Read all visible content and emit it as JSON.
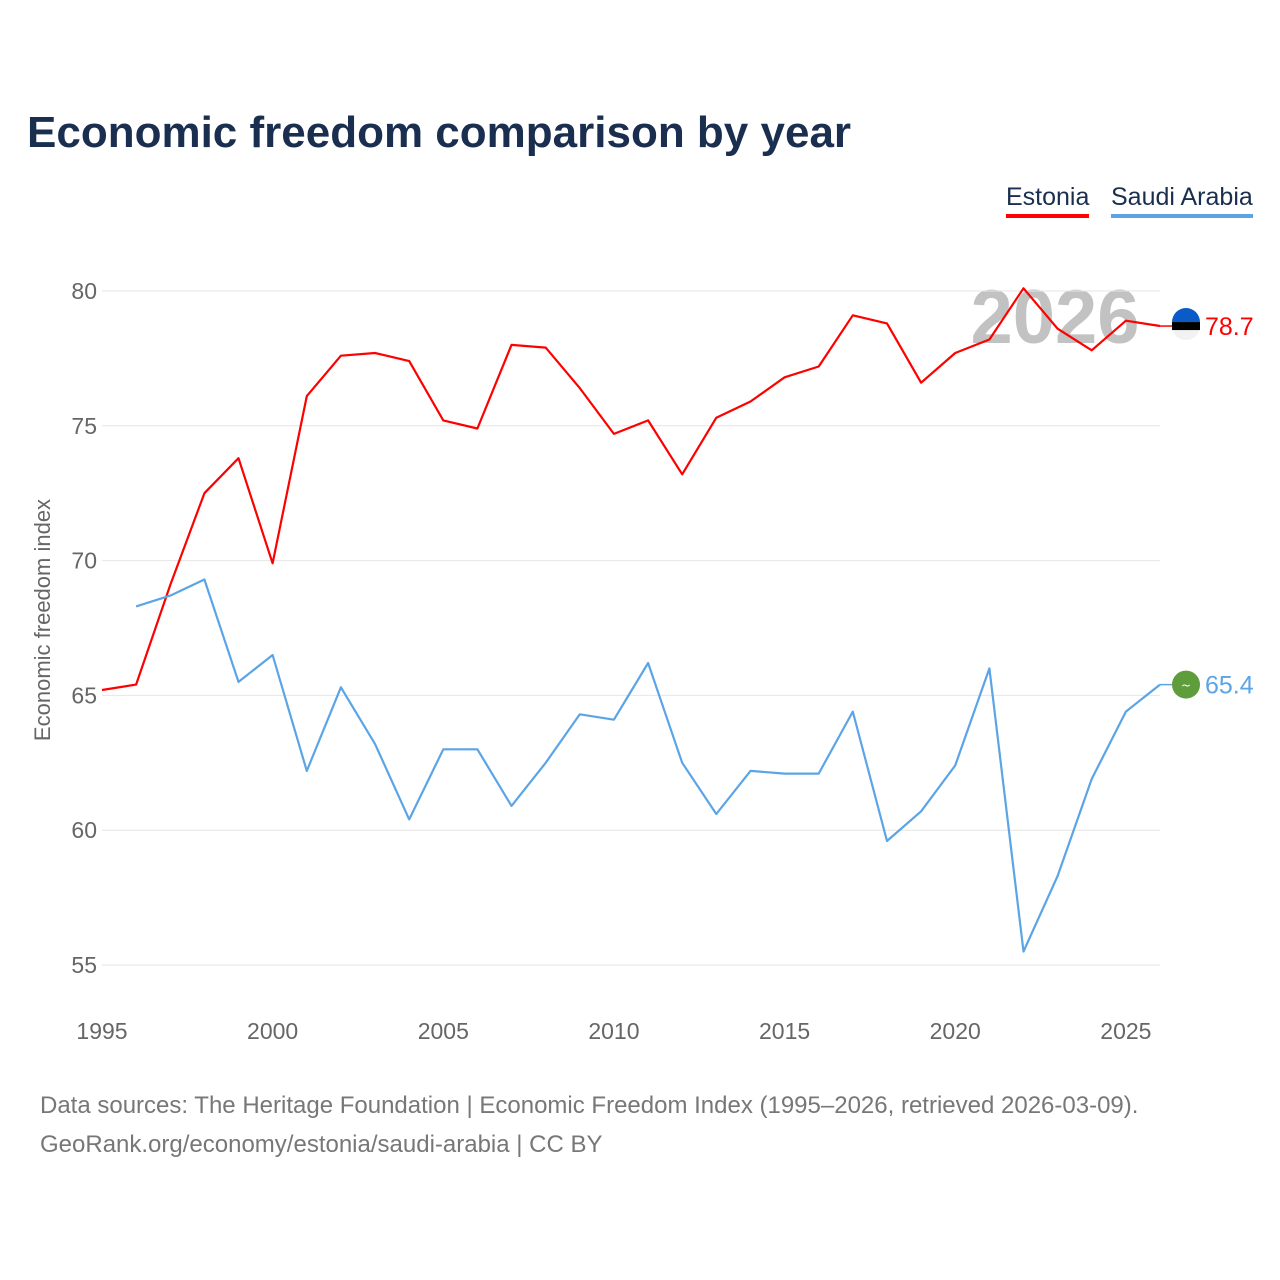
{
  "chart_data": {
    "type": "line",
    "title": "Economic freedom comparison by year",
    "xlabel": "",
    "ylabel": "Economic freedom index",
    "xlim": [
      1995,
      2026
    ],
    "ylim": [
      53.7,
      81.2
    ],
    "xticks": [
      1995,
      2000,
      2005,
      2010,
      2015,
      2020,
      2025
    ],
    "yticks": [
      55,
      60,
      65,
      70,
      75,
      80
    ],
    "grid": true,
    "legend_position": "top-right",
    "watermark_year": "2026",
    "x": [
      1995,
      1996,
      1997,
      1998,
      1999,
      2000,
      2001,
      2002,
      2003,
      2004,
      2005,
      2006,
      2007,
      2008,
      2009,
      2010,
      2011,
      2012,
      2013,
      2014,
      2015,
      2016,
      2017,
      2018,
      2019,
      2020,
      2021,
      2022,
      2023,
      2024,
      2025,
      2026
    ],
    "series": [
      {
        "name": "Estonia",
        "color": "#ff0000",
        "end_label": "78.7",
        "flag": "estonia-flag",
        "values": [
          65.2,
          65.4,
          69.1,
          72.5,
          73.8,
          69.9,
          76.1,
          77.6,
          77.7,
          77.4,
          75.2,
          74.9,
          78.0,
          77.9,
          76.4,
          74.7,
          75.2,
          73.2,
          75.3,
          75.9,
          76.8,
          77.2,
          79.1,
          78.8,
          76.6,
          77.7,
          78.2,
          80.1,
          78.6,
          77.8,
          78.9,
          78.7
        ]
      },
      {
        "name": "Saudi Arabia",
        "color": "#5ba4e6",
        "end_label": "65.4",
        "flag": "saudi-arabia-flag",
        "values": [
          null,
          68.3,
          68.7,
          69.3,
          65.5,
          66.5,
          62.2,
          65.3,
          63.2,
          60.4,
          63.0,
          63.0,
          60.9,
          62.5,
          64.3,
          64.1,
          66.2,
          62.5,
          60.6,
          62.2,
          62.1,
          62.1,
          64.4,
          59.6,
          60.7,
          62.4,
          66.0,
          55.5,
          58.3,
          61.9,
          64.4,
          65.4
        ]
      }
    ]
  },
  "footer": {
    "line1": "Data sources: The Heritage Foundation | Economic Freedom Index (1995–2026, retrieved 2026-03-09).",
    "line2": "GeoRank.org/economy/estonia/saudi-arabia | CC BY"
  }
}
